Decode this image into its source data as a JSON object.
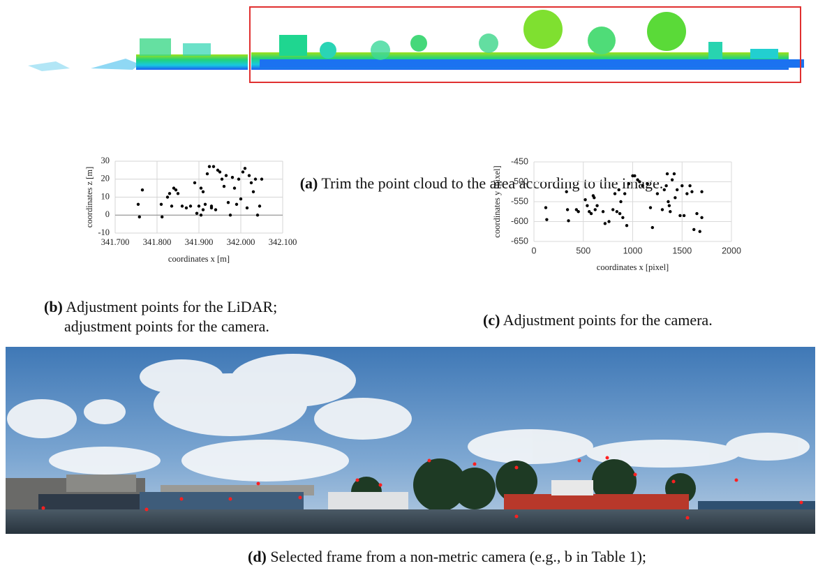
{
  "captions": {
    "a": {
      "label": "(a)",
      "text": "Trim the point cloud to the area according to the image."
    },
    "b": {
      "label": "(b)",
      "text": "Adjustment points for the LiDAR;",
      "text2": "adjustment points for the camera."
    },
    "c": {
      "label": "(c)",
      "text": "Adjustment points for the camera."
    },
    "d": {
      "label": "(d)",
      "text": "Selected frame from a non-metric camera (e.g., b in Table 1);"
    }
  },
  "chart_data": [
    {
      "type": "scatter",
      "xlabel": "coordinates x [m]",
      "ylabel": "coordinates z [m]",
      "color": "#000000",
      "grid": true,
      "xlim": [
        341.7,
        342.1
      ],
      "xticks": [
        {
          "value": 341.7,
          "label": "341.700"
        },
        {
          "value": 341.8,
          "label": "341.800"
        },
        {
          "value": 341.9,
          "label": "341.900"
        },
        {
          "value": 342.0,
          "label": "342.000"
        },
        {
          "value": 342.1,
          "label": "342.100"
        }
      ],
      "ylim": [
        -10,
        30
      ],
      "yticks": [
        -10,
        0,
        10,
        20,
        30
      ],
      "x": [
        341.755,
        341.758,
        341.765,
        341.81,
        341.812,
        341.825,
        341.83,
        341.835,
        341.84,
        341.845,
        341.85,
        341.86,
        341.87,
        341.88,
        341.89,
        341.895,
        341.9,
        341.905,
        341.91,
        341.915,
        341.92,
        341.925,
        341.93,
        341.935,
        341.94,
        341.945,
        341.95,
        341.955,
        341.96,
        341.965,
        341.97,
        341.975,
        341.98,
        341.985,
        341.99,
        341.995,
        342.0,
        342.005,
        342.01,
        342.015,
        342.02,
        342.025,
        342.03,
        342.035,
        342.04,
        342.045,
        342.05,
        341.91,
        341.93,
        341.905
      ],
      "values": [
        6,
        -1,
        14,
        6,
        -1,
        10,
        12,
        5,
        15,
        14,
        12,
        5,
        4,
        5,
        18,
        1,
        5,
        15,
        13,
        6,
        23,
        27,
        4,
        27,
        3,
        25,
        24,
        20,
        16,
        22,
        7,
        0,
        21,
        15,
        6,
        20,
        9,
        24,
        26,
        4,
        22,
        18,
        13,
        20,
        0,
        5,
        20,
        3,
        5,
        0
      ]
    },
    {
      "type": "scatter",
      "xlabel": "coordinates x [pixel]",
      "ylabel": "coordinates y [pixel]",
      "color": "#000000",
      "grid": true,
      "xlim": [
        0,
        2000
      ],
      "xticks": [
        0,
        500,
        1000,
        1500,
        2000
      ],
      "ylim": [
        -650,
        -450
      ],
      "yticks": [
        -650,
        -600,
        -550,
        -500,
        -450
      ],
      "x": [
        120,
        130,
        330,
        340,
        350,
        430,
        450,
        520,
        540,
        560,
        580,
        600,
        610,
        620,
        640,
        700,
        720,
        760,
        800,
        820,
        840,
        860,
        870,
        880,
        900,
        920,
        940,
        960,
        1000,
        1020,
        1050,
        1070,
        1100,
        1150,
        1180,
        1200,
        1250,
        1300,
        1320,
        1340,
        1350,
        1360,
        1370,
        1380,
        1400,
        1420,
        1430,
        1450,
        1480,
        1500,
        1520,
        1550,
        1580,
        1600,
        1620,
        1650,
        1680,
        1700,
        1700
      ],
      "values": [
        -565,
        -595,
        -525,
        -570,
        -598,
        -570,
        -575,
        -545,
        -560,
        -575,
        -580,
        -535,
        -540,
        -570,
        -560,
        -575,
        -605,
        -600,
        -570,
        -530,
        -575,
        -520,
        -580,
        -550,
        -590,
        -530,
        -610,
        -505,
        -485,
        -485,
        -495,
        -500,
        -510,
        -505,
        -565,
        -615,
        -530,
        -570,
        -520,
        -510,
        -480,
        -550,
        -560,
        -575,
        -495,
        -480,
        -540,
        -520,
        -585,
        -510,
        -585,
        -530,
        -510,
        -525,
        -620,
        -580,
        -625,
        -590,
        -525
      ]
    }
  ]
}
